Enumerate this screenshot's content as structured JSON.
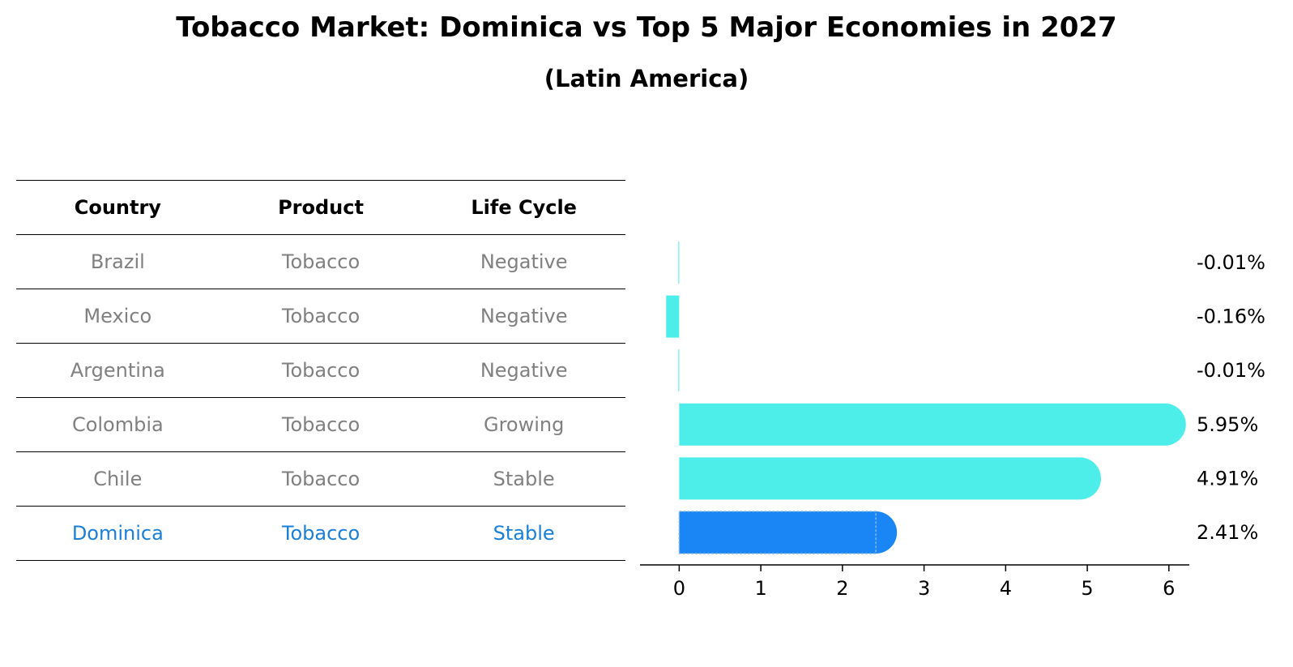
{
  "title": "Tobacco Market: Dominica vs Top 5 Major Economies in 2027",
  "subtitle": "(Latin America)",
  "table": {
    "headers": [
      "Country",
      "Product",
      "Life Cycle"
    ],
    "rows": [
      [
        "Brazil",
        "Tobacco",
        "Negative"
      ],
      [
        "Mexico",
        "Tobacco",
        "Negative"
      ],
      [
        "Argentina",
        "Tobacco",
        "Negative"
      ],
      [
        "Colombia",
        "Tobacco",
        "Growing"
      ],
      [
        "Chile",
        "Tobacco",
        "Stable"
      ],
      [
        "Dominica",
        "Tobacco",
        "Stable"
      ]
    ]
  },
  "chart_data": {
    "type": "bar",
    "orientation": "horizontal",
    "categories": [
      "Brazil",
      "Mexico",
      "Argentina",
      "Colombia",
      "Chile",
      "Dominica"
    ],
    "values": [
      -0.01,
      -0.16,
      -0.01,
      5.95,
      4.91,
      2.41
    ],
    "value_labels": [
      "-0.01%",
      "-0.16%",
      "-0.01%",
      "5.95%",
      "4.91%",
      "2.41%"
    ],
    "highlight": "Dominica",
    "xlim": [
      -0.48,
      6.25
    ],
    "xticks": [
      0,
      1,
      2,
      3,
      4,
      5,
      6
    ],
    "grid": false,
    "colors": {
      "bar": "#4deeea",
      "highlight": "#1a85f5"
    }
  }
}
